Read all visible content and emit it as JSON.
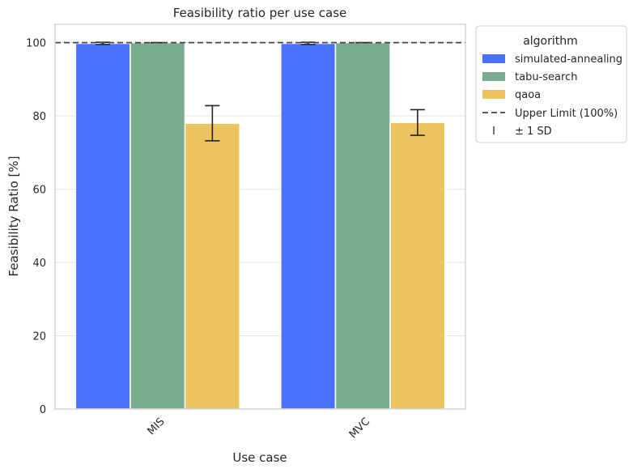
{
  "chart_data": {
    "type": "bar",
    "title": "Feasibility ratio per use case",
    "xlabel": "Use case",
    "ylabel": "Feasibility Ratio [%]",
    "categories": [
      "MIS",
      "MVC"
    ],
    "ylim": [
      0,
      105
    ],
    "yticks": [
      0,
      20,
      40,
      60,
      80,
      100
    ],
    "grid": true,
    "series": [
      {
        "name": "simulated-annealing",
        "color": "#4a72ff",
        "values": [
          99.8,
          99.8
        ],
        "sd": [
          0.3,
          0.3
        ]
      },
      {
        "name": "tabu-search",
        "color": "#77ad8e",
        "values": [
          100,
          100
        ],
        "sd": [
          0,
          0
        ]
      },
      {
        "name": "qaoa",
        "color": "#ecc35c",
        "values": [
          78.0,
          78.2
        ],
        "sd": [
          4.8,
          3.5
        ]
      }
    ],
    "reference_line": {
      "label": "Upper Limit (100%)",
      "value": 100,
      "style": "dashed",
      "color": "#444444"
    },
    "legend": {
      "title": "algorithm",
      "placement": "outside-top-right",
      "sd_symbol": "I",
      "sd_label": "± 1 SD"
    }
  }
}
